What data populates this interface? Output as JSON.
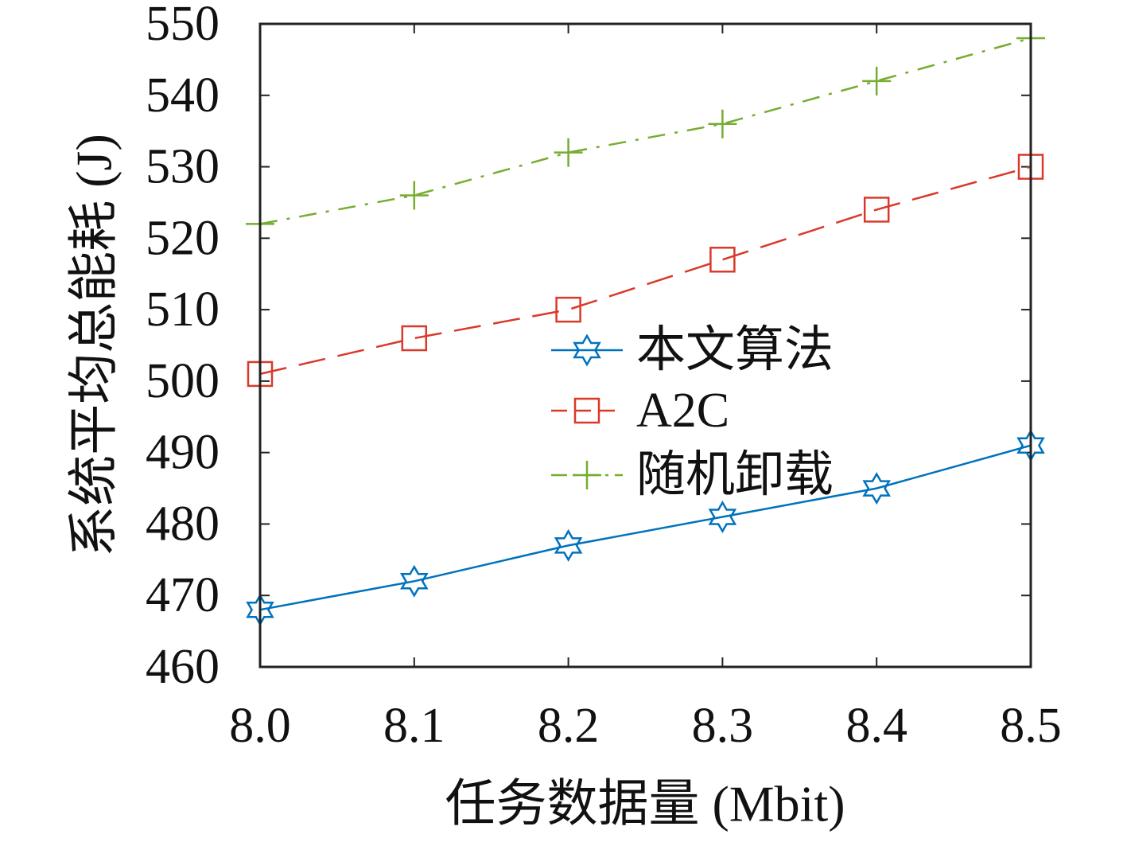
{
  "chart_data": {
    "type": "line",
    "x": [
      8.0,
      8.1,
      8.2,
      8.3,
      8.4,
      8.5
    ],
    "x_tick_labels": [
      "8.0",
      "8.1",
      "8.2",
      "8.3",
      "8.4",
      "8.5"
    ],
    "y_ticks": [
      460,
      470,
      480,
      490,
      500,
      510,
      520,
      530,
      540,
      550
    ],
    "xlim": [
      8.0,
      8.5
    ],
    "ylim": [
      460,
      550
    ],
    "xlabel": "任务数据量 (Mbit)",
    "ylabel": "系统平均总能耗 (J)",
    "grid": false,
    "legend_position": "center-right",
    "series": [
      {
        "name": "本文算法",
        "values": [
          468,
          472,
          477,
          481,
          485,
          491
        ],
        "color": "#0072BD",
        "marker": "hexagram",
        "line_style": "solid"
      },
      {
        "name": "A2C",
        "values": [
          501,
          506,
          510,
          517,
          524,
          530
        ],
        "color": "#D9392B",
        "marker": "square",
        "line_style": "dashed"
      },
      {
        "name": "随机卸载",
        "values": [
          522,
          526,
          532,
          536,
          542,
          548
        ],
        "color": "#77AC30",
        "marker": "plus",
        "line_style": "dash-dot"
      }
    ]
  }
}
